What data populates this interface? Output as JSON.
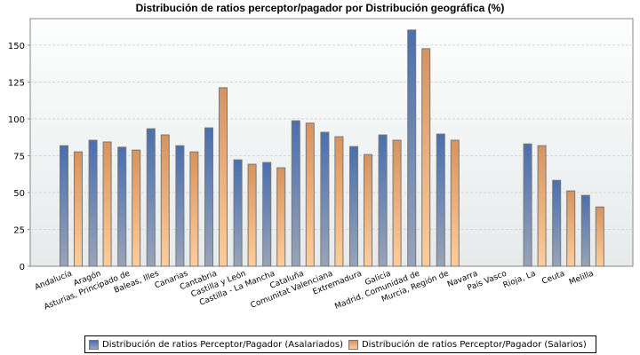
{
  "chart_data": {
    "type": "bar",
    "title": "Distribución de ratios perceptor/pagador por Distribución geográfica (%)",
    "xlabel": "",
    "ylabel": "",
    "ylim": [
      0,
      168
    ],
    "yticks": [
      0,
      25,
      50,
      75,
      100,
      125,
      150
    ],
    "grid": true,
    "legend_position": "bottom",
    "categories": [
      "Andalucía",
      "Aragón",
      "Asturias, Principado de",
      "Baleas, Illes",
      "Canarias",
      "Cantabria",
      "Castilla y León",
      "Castilla - La Mancha",
      "Cataluña",
      "Comunitat Valenciana",
      "Extremadura",
      "Galicia",
      "Madrid, Comunidad de",
      "Murcia, Región de",
      "Navarra",
      "País Vasco",
      "Rioja, La",
      "Ceuta",
      "Melilla"
    ],
    "series": [
      {
        "name": "Distribución de ratios Perceptor/Pagador (Asalariados)",
        "color": "#4a6fb0",
        "values": [
          81.8,
          85.5,
          80.8,
          93.3,
          81.8,
          93.9,
          72.2,
          70.4,
          98.7,
          90.9,
          81.2,
          89.1,
          160.3,
          89.7,
          null,
          null,
          83.0,
          58.3,
          48.1
        ]
      },
      {
        "name": "Distribución de ratios Perceptor/Pagador (Salarios)",
        "color": "#e09a62",
        "values": [
          77.6,
          84.3,
          78.8,
          89.1,
          77.6,
          121.1,
          69.2,
          66.8,
          97.1,
          87.9,
          75.8,
          85.5,
          147.6,
          85.5,
          null,
          null,
          81.8,
          51.1,
          40.2
        ]
      }
    ]
  }
}
